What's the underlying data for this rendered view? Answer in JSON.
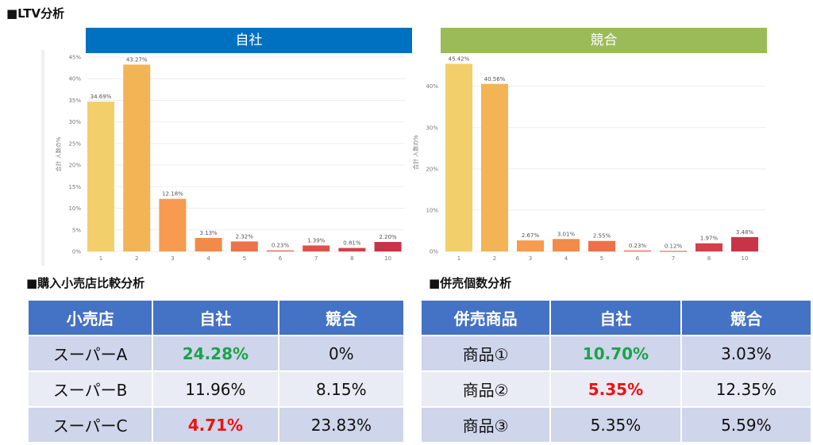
{
  "title": "■LTV分析",
  "colors": {
    "own_banner": "#0070c0",
    "comp_banner": "#9bbb59",
    "table_header": "#4472c4",
    "bars": [
      "#f2cf6a",
      "#f3b455",
      "#f69b50",
      "#f28a4a",
      "#ee7248",
      "#e8604a",
      "#e0504a",
      "#d44049",
      "#c83347",
      "#b92743"
    ]
  },
  "chart_data": [
    {
      "type": "bar",
      "title": "自社",
      "ylabel": "合計 人数の%",
      "categories": [
        "1",
        "2",
        "3",
        "4",
        "5",
        "6",
        "7",
        "8",
        "10"
      ],
      "values": [
        34.69,
        43.27,
        12.18,
        3.13,
        2.32,
        0.23,
        1.39,
        0.81,
        2.2
      ],
      "labels": [
        "34.69%",
        "43.27%",
        "12.18%",
        "3.13%",
        "2.32%",
        "0.23%",
        "1.39%",
        "0.81%",
        "2.20%"
      ],
      "yticks": [
        "0%",
        "5%",
        "10%",
        "15%",
        "20%",
        "25%",
        "30%",
        "35%",
        "40%",
        "45%"
      ],
      "ytick_values": [
        0,
        5,
        10,
        15,
        20,
        25,
        30,
        35,
        40,
        45
      ],
      "ylim": [
        0,
        45
      ]
    },
    {
      "type": "bar",
      "title": "競合",
      "ylabel": "合計 人数の%",
      "categories": [
        "1",
        "2",
        "3",
        "4",
        "5",
        "6",
        "7",
        "8",
        "10"
      ],
      "values": [
        45.42,
        40.56,
        2.67,
        3.01,
        2.55,
        0.23,
        0.12,
        1.97,
        3.48
      ],
      "labels": [
        "45.42%",
        "40.56%",
        "2.67%",
        "3.01%",
        "2.55%",
        "0.23%",
        "0.12%",
        "1.97%",
        "3.48%"
      ],
      "yticks": [
        "0%",
        "10%",
        "20%",
        "30%",
        "40%"
      ],
      "ytick_values": [
        0,
        10,
        20,
        30,
        40
      ],
      "ylim": [
        0,
        48
      ]
    }
  ],
  "retail": {
    "heading": "■購入小売店比較分析",
    "headers": [
      "小売店",
      "自社",
      "競合"
    ],
    "rows": [
      {
        "name": "スーパーA",
        "own": "24.28%",
        "comp": "0%"
      },
      {
        "name": "スーパーB",
        "own": "11.96%",
        "comp": "8.15%"
      },
      {
        "name": "スーパーC",
        "own": "4.71%",
        "comp": "23.83%"
      }
    ]
  },
  "bundle": {
    "heading": "■併売個数分析",
    "headers": [
      "併売商品",
      "自社",
      "競合"
    ],
    "rows": [
      {
        "name": "商品①",
        "own": "10.70%",
        "comp": "3.03%"
      },
      {
        "name": "商品②",
        "own": "5.35%",
        "comp": "12.35%"
      },
      {
        "name": "商品③",
        "own": "5.35%",
        "comp": "5.59%"
      }
    ]
  }
}
